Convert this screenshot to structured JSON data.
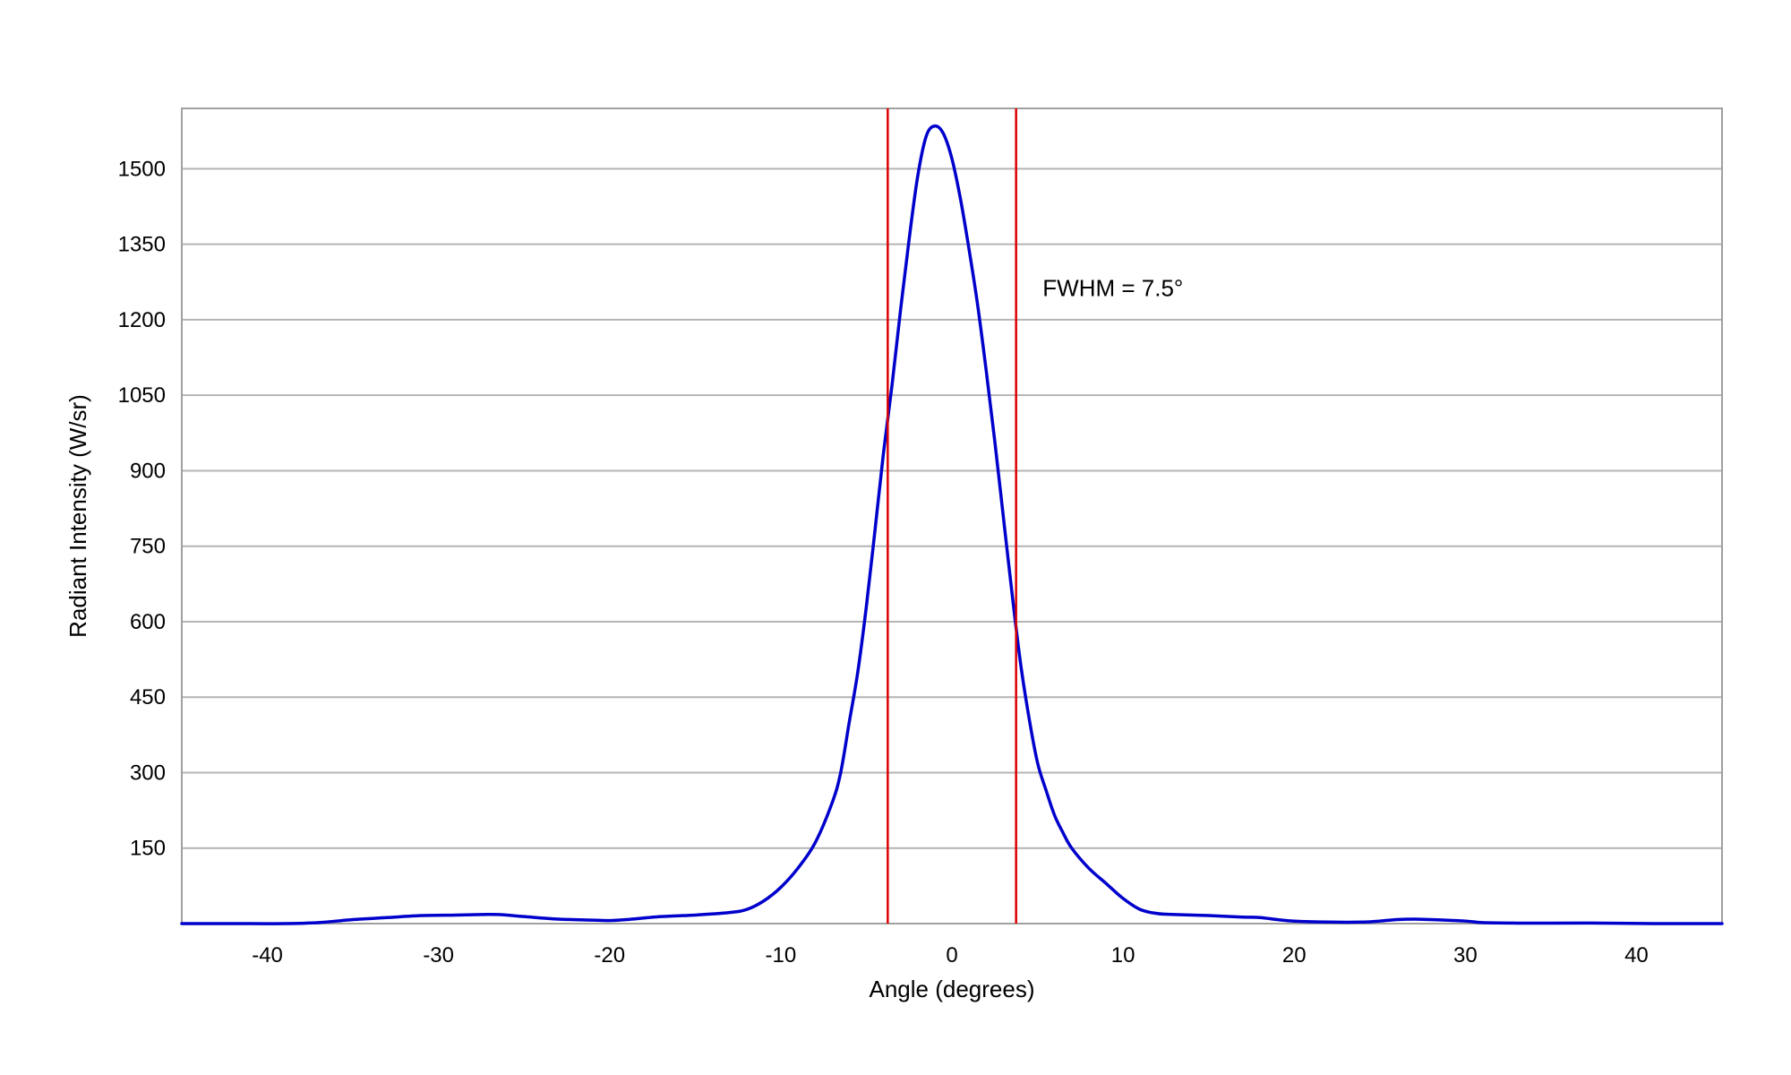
{
  "chart_data": {
    "type": "line",
    "xlabel": "Angle (degrees)",
    "ylabel": "Radiant Intensity (W/sr)",
    "xlim": [
      -45,
      45
    ],
    "ylim": [
      0,
      1620
    ],
    "x_ticks": [
      -40,
      -30,
      -20,
      -10,
      0,
      10,
      20,
      30,
      40
    ],
    "y_ticks": [
      150,
      300,
      450,
      600,
      750,
      900,
      1050,
      1200,
      1350,
      1500
    ],
    "grid": "horizontal",
    "series": [
      {
        "color": "#0000cc",
        "x": [
          -45,
          -42,
          -39,
          -37,
          -35,
          -33,
          -31,
          -29,
          -27.5,
          -26.5,
          -25,
          -23,
          -21,
          -20,
          -19,
          -17,
          -15,
          -13,
          -12,
          -11,
          -10,
          -9,
          -8,
          -7,
          -6.5,
          -6,
          -5.5,
          -5,
          -4.5,
          -4,
          -3.5,
          -3,
          -2.5,
          -2,
          -1.5,
          -1,
          -0.5,
          0,
          0.5,
          1,
          1.5,
          2,
          2.5,
          3,
          3.5,
          4,
          4.5,
          5,
          5.5,
          6,
          6.5,
          7,
          8,
          9,
          10,
          11,
          12,
          13,
          15,
          17,
          18,
          19,
          20,
          22,
          24,
          25,
          26,
          27,
          28,
          30,
          31,
          33,
          35,
          38,
          41,
          45
        ],
        "y": [
          0,
          0,
          0,
          2,
          8,
          12,
          16,
          17,
          18,
          18,
          14,
          9,
          7,
          6,
          8,
          14,
          17,
          22,
          28,
          45,
          72,
          110,
          160,
          240,
          300,
          400,
          500,
          630,
          780,
          935,
          1070,
          1220,
          1360,
          1485,
          1565,
          1585,
          1570,
          1520,
          1440,
          1340,
          1230,
          1100,
          960,
          810,
          660,
          520,
          410,
          320,
          265,
          215,
          180,
          150,
          110,
          80,
          50,
          28,
          20,
          18,
          16,
          13,
          12,
          8,
          5,
          3,
          3,
          5,
          8,
          9,
          8,
          5,
          2,
          1,
          1,
          1,
          0,
          0
        ]
      }
    ],
    "markers": [
      {
        "x": -3.75,
        "color": "#dd0000"
      },
      {
        "x": 3.75,
        "color": "#dd0000"
      }
    ],
    "annotations": [
      {
        "text": "FWHM = 7.5°",
        "x": 5.3,
        "y": 1263
      }
    ]
  }
}
